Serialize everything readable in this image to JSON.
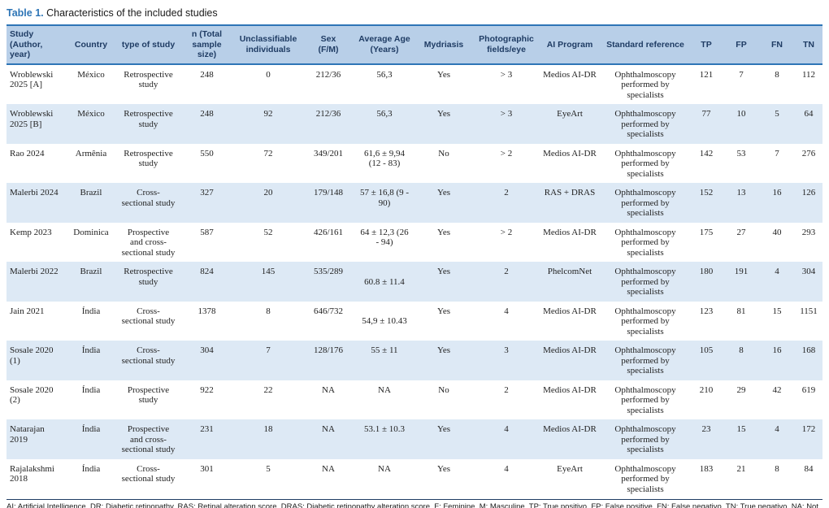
{
  "title": {
    "label": "Table 1.",
    "text": " Characteristics of the included studies"
  },
  "colors": {
    "accent_blue": "#2e75b6",
    "header_bg": "#b8cfe8",
    "header_text": "#1f3c64",
    "stripe_bg": "#dde9f5",
    "footnote_rule": "#1f3c64"
  },
  "table": {
    "columns": [
      {
        "label": "Study\n(Author,\nyear)"
      },
      {
        "label": "Country"
      },
      {
        "label": "type of study"
      },
      {
        "label": "n (Total\nsample\nsize)"
      },
      {
        "label": "Unclassifiable\nindividuals"
      },
      {
        "label": "Sex\n(F/M)"
      },
      {
        "label": "Average Age\n(Years)"
      },
      {
        "label": "Mydriasis"
      },
      {
        "label": "Photographic\nfields/eye"
      },
      {
        "label": "AI Program"
      },
      {
        "label": "Standard reference"
      },
      {
        "label": "TP"
      },
      {
        "label": "FP"
      },
      {
        "label": "FN"
      },
      {
        "label": "TN"
      }
    ],
    "rows": [
      [
        "Wroblewski 2025 [A]",
        "México",
        "Retrospective study",
        "248",
        "0",
        "212/36",
        "56,3",
        "Yes",
        "> 3",
        "Medios AI-DR",
        "Ophthalmoscopy performed by specialists",
        "121",
        "7",
        "8",
        "112"
      ],
      [
        "Wroblewski 2025 [B]",
        "México",
        "Retrospective study",
        "248",
        "92",
        "212/36",
        "56,3",
        "Yes",
        "> 3",
        "EyeArt",
        "Ophthalmoscopy performed by specialists",
        "77",
        "10",
        "5",
        "64"
      ],
      [
        "Rao 2024",
        "Armênia",
        "Retrospective study",
        "550",
        "72",
        "349/201",
        "61,6 ± 9,94 (12 - 83)",
        "No",
        "> 2",
        "Medios AI-DR",
        "Ophthalmoscopy performed by specialists",
        "142",
        "53",
        "7",
        "276"
      ],
      [
        "Malerbi 2024",
        "Brazil",
        "Cross-sectional study",
        "327",
        "20",
        "179/148",
        "57 ± 16,8 (9 - 90)",
        "Yes",
        "2",
        "RAS + DRAS",
        "Ophthalmoscopy performed by specialists",
        "152",
        "13",
        "16",
        "126"
      ],
      [
        "Kemp 2023",
        "Dominica",
        "Prospective and cross-sectional study",
        "587",
        "52",
        "426/161",
        "64 ± 12,3 (26 - 94)",
        "Yes",
        "> 2",
        "Medios AI-DR",
        "Ophthalmoscopy performed by specialists",
        "175",
        "27",
        "40",
        "293"
      ],
      [
        "Malerbi 2022",
        "Brazil",
        "Retrospective study",
        "824",
        "145",
        "535/289",
        "\n60.8 ± 11.4",
        "Yes",
        "2",
        "PhelcomNet",
        "Ophthalmoscopy performed by specialists",
        "180",
        "191",
        "4",
        "304"
      ],
      [
        "Jain 2021",
        "Índia",
        "Cross-sectional study",
        "1378",
        "8",
        "646/732",
        "\n54,9 ± 10.43",
        "Yes",
        "4",
        "Medios AI-DR",
        "Ophthalmoscopy performed by specialists",
        "123",
        "81",
        "15",
        "1151"
      ],
      [
        "Sosale 2020 (1)",
        "Índia",
        "Cross-sectional study",
        "304",
        "7",
        "128/176",
        "55 ± 11",
        "Yes",
        "3",
        "Medios AI-DR",
        "Ophthalmoscopy performed by specialists",
        "105",
        "8",
        "16",
        "168"
      ],
      [
        "Sosale 2020 (2)",
        "Índia",
        "Prospective study",
        "922",
        "22",
        "NA",
        "NA",
        "No",
        "2",
        "Medios AI-DR",
        "Ophthalmoscopy performed by specialists",
        "210",
        "29",
        "42",
        "619"
      ],
      [
        "Natarajan 2019",
        "Índia",
        "Prospective and cross-sectional study",
        "231",
        "18",
        "NA",
        "53.1 ± 10.3",
        "Yes",
        "4",
        "Medios AI-DR",
        "Ophthalmoscopy performed by specialists",
        "23",
        "15",
        "4",
        "172"
      ],
      [
        "Rajalakshmi 2018",
        "Índia",
        "Cross-sectional study",
        "301",
        "5",
        "NA",
        "NA",
        "Yes",
        "4",
        "EyeArt",
        "Ophthalmoscopy performed by specialists",
        "183",
        "21",
        "8",
        "84"
      ]
    ]
  },
  "footnote": "AI: Artificial Intelligence, DR: Diabetic retinopathy, RAS: Retinal alteration score, DRAS: Diabetic retinopathy alteration score, F: Feminine, M: Masculine, TP: True positivo, FP: False positive, FN: False negativo, TN: True negativo, NA: Not applicable."
}
